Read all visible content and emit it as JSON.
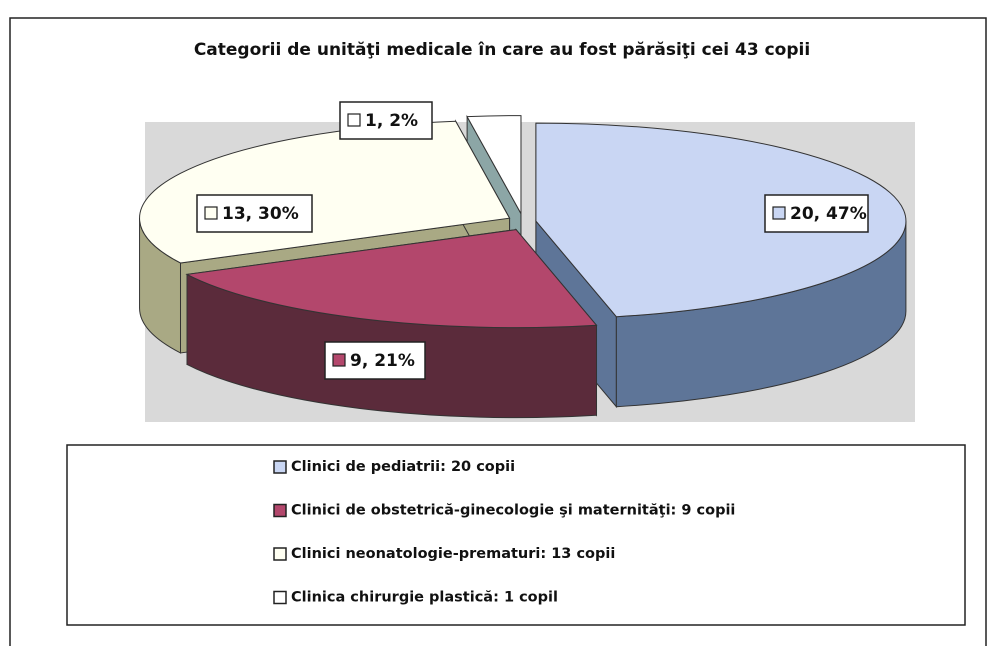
{
  "chart_data": {
    "type": "pie",
    "title": "Categorii de unităţi medicale în care au fost părăsiţi cei 43 copii",
    "categories": [
      "Clinici de pediatrii: 20 copii",
      "Clinici de obstetrică-ginecologie şi maternităţi: 9 copii",
      "Clinici neonatologie-prematuri: 13 copii",
      "Clinica chirurgie plastică: 1 copil"
    ],
    "values": [
      20,
      9,
      13,
      1
    ],
    "value_labels": [
      "20, 47%",
      "9, 21%",
      "13, 30%",
      "1, 2%"
    ],
    "colors": [
      "#c9d6f3",
      "#b3476c",
      "#fffff2",
      "#ffffff"
    ],
    "side_colors": [
      "#5e7598",
      "#5b2b3b",
      "#a9a984",
      "#8ca6a6"
    ],
    "legend": "bottom"
  }
}
